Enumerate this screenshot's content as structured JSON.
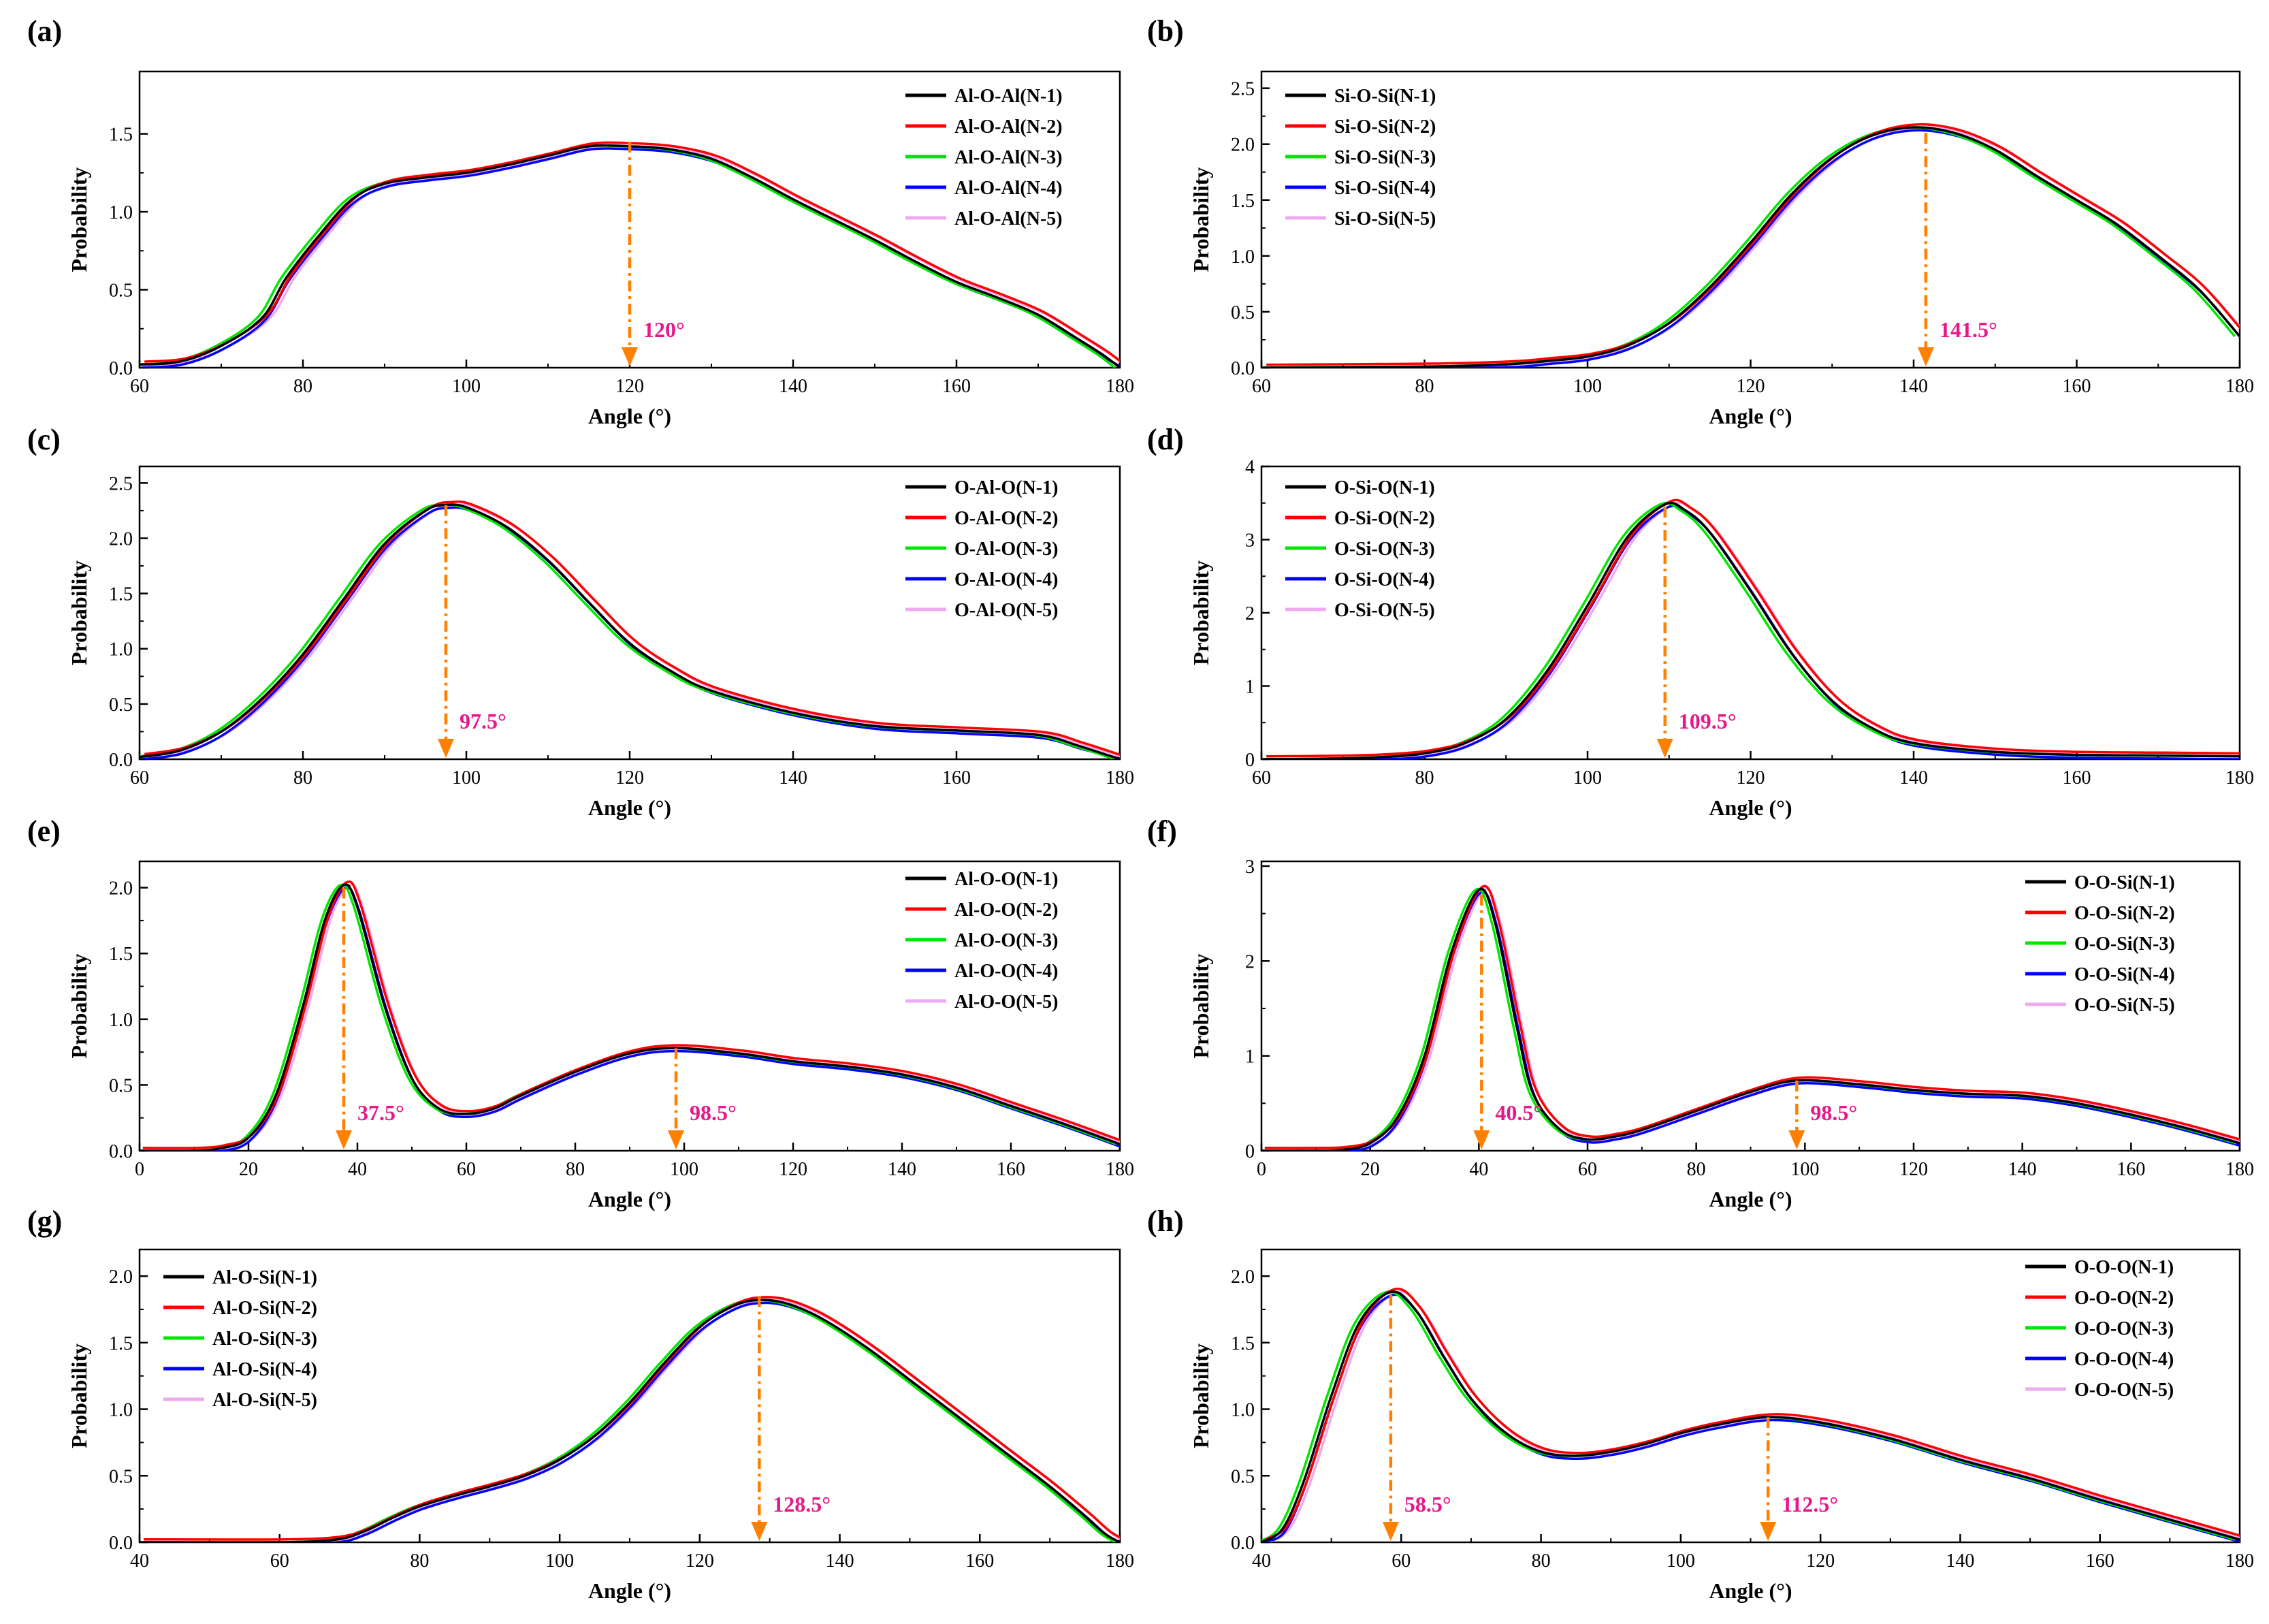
{
  "figure": {
    "xlabel": "Angle (°)",
    "ylabel": "Probability"
  },
  "colors": {
    "N-1": "#000000",
    "N-2": "#ff0000",
    "N-3": "#00e600",
    "N-4": "#0000ff",
    "N-5": "#eeaaee",
    "arrow": "#ff8000",
    "annotation": "#e8178a"
  },
  "chart_data": [
    {
      "panel": "(a)",
      "type": "line",
      "xlabel": "Angle (°)",
      "ylabel": "Probability",
      "xlim": [
        60,
        180
      ],
      "ylim": [
        0,
        1.9
      ],
      "xticks": [
        60,
        80,
        100,
        120,
        140,
        160,
        180
      ],
      "yticks": [
        0.0,
        0.5,
        1.0,
        1.5
      ],
      "ytick_labels": [
        "0.0",
        "0.5",
        "1.0",
        "1.5"
      ],
      "legend": "top-right",
      "series": [
        {
          "name": "Al-O-Al(N-1)"
        },
        {
          "name": "Al-O-Al(N-2)"
        },
        {
          "name": "Al-O-Al(N-3)"
        },
        {
          "name": "Al-O-Al(N-4)"
        },
        {
          "name": "Al-O-Al(N-5)"
        }
      ],
      "x": [
        60,
        65,
        70,
        75,
        78,
        82,
        86,
        90,
        95,
        100,
        105,
        110,
        115,
        120,
        125,
        130,
        135,
        140,
        145,
        150,
        155,
        160,
        165,
        170,
        175,
        178,
        180
      ],
      "y": [
        0.02,
        0.04,
        0.14,
        0.32,
        0.58,
        0.85,
        1.08,
        1.18,
        1.22,
        1.25,
        1.3,
        1.36,
        1.42,
        1.42,
        1.4,
        1.34,
        1.22,
        1.08,
        0.95,
        0.82,
        0.68,
        0.55,
        0.45,
        0.34,
        0.18,
        0.08,
        0.0
      ],
      "annotations": [
        {
          "label": "120°",
          "x": 120,
          "y_top": 1.45
        }
      ]
    },
    {
      "panel": "(b)",
      "type": "line",
      "xlabel": "Angle (°)",
      "ylabel": "Probability",
      "xlim": [
        60,
        180
      ],
      "ylim": [
        0,
        2.65
      ],
      "xticks": [
        60,
        80,
        100,
        120,
        140,
        160,
        180
      ],
      "yticks": [
        0.0,
        0.5,
        1.0,
        1.5,
        2.0,
        2.5
      ],
      "ytick_labels": [
        "0.0",
        "0.5",
        "1.0",
        "1.5",
        "2.0",
        "2.5"
      ],
      "legend": "top-left",
      "series": [
        {
          "name": "Si-O-Si(N-1)"
        },
        {
          "name": "Si-O-Si(N-2)"
        },
        {
          "name": "Si-O-Si(N-3)"
        },
        {
          "name": "Si-O-Si(N-4)"
        },
        {
          "name": "Si-O-Si(N-5)"
        }
      ],
      "x": [
        60,
        80,
        90,
        95,
        100,
        105,
        110,
        115,
        120,
        125,
        130,
        135,
        140,
        145,
        150,
        155,
        160,
        165,
        170,
        175,
        180
      ],
      "y": [
        0.0,
        0.01,
        0.03,
        0.06,
        0.1,
        0.2,
        0.4,
        0.72,
        1.12,
        1.55,
        1.88,
        2.08,
        2.15,
        2.1,
        1.95,
        1.72,
        1.5,
        1.28,
        1.0,
        0.7,
        0.28
      ],
      "annotations": [
        {
          "label": "141.5°",
          "x": 141.5,
          "y_top": 2.1
        }
      ]
    },
    {
      "panel": "(c)",
      "type": "line",
      "xlabel": "Angle (°)",
      "ylabel": "Probability",
      "xlim": [
        60,
        180
      ],
      "ylim": [
        0,
        2.65
      ],
      "xticks": [
        60,
        80,
        100,
        120,
        140,
        160,
        180
      ],
      "yticks": [
        0.0,
        0.5,
        1.0,
        1.5,
        2.0,
        2.5
      ],
      "ytick_labels": [
        "0.0",
        "0.5",
        "1.0",
        "1.5",
        "2.0",
        "2.5"
      ],
      "legend": "top-right",
      "series": [
        {
          "name": "O-Al-O(N-1)"
        },
        {
          "name": "O-Al-O(N-2)"
        },
        {
          "name": "O-Al-O(N-3)"
        },
        {
          "name": "O-Al-O(N-4)"
        },
        {
          "name": "O-Al-O(N-5)"
        }
      ],
      "x": [
        60,
        65,
        70,
        75,
        80,
        85,
        90,
        95,
        97.5,
        100,
        105,
        110,
        115,
        120,
        125,
        130,
        140,
        150,
        160,
        170,
        175,
        180
      ],
      "y": [
        0.02,
        0.08,
        0.25,
        0.55,
        0.95,
        1.45,
        1.95,
        2.25,
        2.3,
        2.28,
        2.1,
        1.8,
        1.42,
        1.05,
        0.8,
        0.62,
        0.42,
        0.3,
        0.26,
        0.22,
        0.12,
        0.0
      ],
      "annotations": [
        {
          "label": "97.5°",
          "x": 97.5,
          "y_top": 2.3
        }
      ]
    },
    {
      "panel": "(d)",
      "type": "line",
      "xlabel": "Angle (°)",
      "ylabel": "Probability",
      "xlim": [
        60,
        180
      ],
      "ylim": [
        0,
        4
      ],
      "xticks": [
        60,
        80,
        100,
        120,
        140,
        160,
        180
      ],
      "yticks": [
        0,
        1,
        2,
        3,
        4
      ],
      "ytick_labels": [
        "0",
        "1",
        "2",
        "3",
        "4"
      ],
      "legend": "top-left",
      "series": [
        {
          "name": "O-Si-O(N-1)"
        },
        {
          "name": "O-Si-O(N-2)"
        },
        {
          "name": "O-Si-O(N-3)"
        },
        {
          "name": "O-Si-O(N-4)"
        },
        {
          "name": "O-Si-O(N-5)"
        }
      ],
      "x": [
        60,
        70,
        75,
        80,
        85,
        90,
        95,
        100,
        105,
        109.5,
        112,
        115,
        120,
        125,
        130,
        135,
        140,
        150,
        160,
        170,
        180
      ],
      "y": [
        0.0,
        0.01,
        0.03,
        0.08,
        0.22,
        0.55,
        1.2,
        2.1,
        3.05,
        3.48,
        3.4,
        3.1,
        2.3,
        1.45,
        0.8,
        0.42,
        0.22,
        0.1,
        0.06,
        0.05,
        0.04
      ],
      "annotations": [
        {
          "label": "109.5°",
          "x": 109.5,
          "y_top": 3.45
        }
      ]
    },
    {
      "panel": "(e)",
      "type": "line",
      "xlabel": "Angle (°)",
      "ylabel": "Probability",
      "xlim": [
        0,
        180
      ],
      "ylim": [
        0,
        2.2
      ],
      "xticks": [
        0,
        20,
        40,
        60,
        80,
        100,
        120,
        140,
        160,
        180
      ],
      "yticks": [
        0.0,
        0.5,
        1.0,
        1.5,
        2.0
      ],
      "ytick_labels": [
        "0.0",
        "0.5",
        "1.0",
        "1.5",
        "2.0"
      ],
      "legend": "top-right",
      "series": [
        {
          "name": "Al-O-O(N-1)"
        },
        {
          "name": "Al-O-O(N-2)"
        },
        {
          "name": "Al-O-O(N-3)"
        },
        {
          "name": "Al-O-O(N-4)"
        },
        {
          "name": "Al-O-O(N-5)"
        }
      ],
      "x": [
        0,
        10,
        15,
        20,
        25,
        30,
        34,
        37.5,
        40,
        45,
        50,
        55,
        60,
        65,
        70,
        80,
        90,
        98.5,
        110,
        120,
        130,
        140,
        150,
        160,
        170,
        180
      ],
      "y": [
        0.0,
        0.0,
        0.02,
        0.1,
        0.42,
        1.1,
        1.75,
        2.02,
        1.85,
        1.1,
        0.55,
        0.32,
        0.28,
        0.32,
        0.42,
        0.6,
        0.74,
        0.78,
        0.74,
        0.68,
        0.64,
        0.58,
        0.48,
        0.34,
        0.2,
        0.05
      ],
      "annotations": [
        {
          "label": "37.5°",
          "x": 37.5,
          "y_top": 2.0
        },
        {
          "label": "98.5°",
          "x": 98.5,
          "y_top": 0.78
        }
      ]
    },
    {
      "panel": "(f)",
      "type": "line",
      "xlabel": "Angle (°)",
      "ylabel": "Probability",
      "xlim": [
        0,
        180
      ],
      "ylim": [
        0,
        3.05
      ],
      "xticks": [
        0,
        20,
        40,
        60,
        80,
        100,
        120,
        140,
        160,
        180
      ],
      "yticks": [
        0,
        1,
        2,
        3
      ],
      "ytick_labels": [
        "0",
        "1",
        "2",
        "3"
      ],
      "legend": "middle-right",
      "series": [
        {
          "name": "O-O-Si(N-1)"
        },
        {
          "name": "O-O-Si(N-2)"
        },
        {
          "name": "O-O-Si(N-3)"
        },
        {
          "name": "O-O-Si(N-4)"
        },
        {
          "name": "O-O-Si(N-5)"
        }
      ],
      "x": [
        0,
        10,
        15,
        20,
        25,
        30,
        35,
        40,
        43,
        47,
        50,
        55,
        60,
        65,
        70,
        80,
        90,
        98.5,
        110,
        120,
        130,
        140,
        150,
        160,
        170,
        180
      ],
      "y": [
        0.0,
        0.0,
        0.01,
        0.08,
        0.35,
        1.0,
        2.1,
        2.75,
        2.4,
        1.3,
        0.6,
        0.22,
        0.12,
        0.15,
        0.22,
        0.42,
        0.62,
        0.74,
        0.7,
        0.64,
        0.6,
        0.58,
        0.5,
        0.38,
        0.24,
        0.08
      ],
      "annotations": [
        {
          "label": "40.5°",
          "x": 40.5,
          "y_top": 2.7
        },
        {
          "label": "98.5°",
          "x": 98.5,
          "y_top": 0.74
        }
      ]
    },
    {
      "panel": "(g)",
      "type": "line",
      "xlabel": "Angle (°)",
      "ylabel": "Probability",
      "xlim": [
        40,
        180
      ],
      "ylim": [
        0,
        2.2
      ],
      "xticks": [
        40,
        60,
        80,
        100,
        120,
        140,
        160,
        180
      ],
      "yticks": [
        0.0,
        0.5,
        1.0,
        1.5,
        2.0
      ],
      "ytick_labels": [
        "0.0",
        "0.5",
        "1.0",
        "1.5",
        "2.0"
      ],
      "legend": "top-left",
      "series": [
        {
          "name": "Al-O-Si(N-1)"
        },
        {
          "name": "Al-O-Si(N-2)"
        },
        {
          "name": "Al-O-Si(N-3)"
        },
        {
          "name": "Al-O-Si(N-4)"
        },
        {
          "name": "Al-O-Si(N-5)"
        }
      ],
      "x": [
        40,
        60,
        68,
        72,
        76,
        80,
        85,
        90,
        95,
        100,
        105,
        110,
        115,
        120,
        125,
        128.5,
        132,
        136,
        140,
        145,
        150,
        155,
        160,
        165,
        170,
        175,
        178,
        180
      ],
      "y": [
        0.0,
        0.0,
        0.02,
        0.08,
        0.18,
        0.27,
        0.35,
        0.42,
        0.5,
        0.62,
        0.8,
        1.05,
        1.35,
        1.62,
        1.78,
        1.82,
        1.8,
        1.72,
        1.6,
        1.42,
        1.22,
        1.02,
        0.82,
        0.62,
        0.42,
        0.2,
        0.06,
        0.0
      ],
      "annotations": [
        {
          "label": "128.5°",
          "x": 128.5,
          "y_top": 1.85
        }
      ]
    },
    {
      "panel": "(h)",
      "type": "line",
      "xlabel": "Angle (°)",
      "ylabel": "Probability",
      "xlim": [
        40,
        180
      ],
      "ylim": [
        0,
        2.2
      ],
      "xticks": [
        40,
        60,
        80,
        100,
        120,
        140,
        160,
        180
      ],
      "yticks": [
        0.0,
        0.5,
        1.0,
        1.5,
        2.0
      ],
      "ytick_labels": [
        "0.0",
        "0.5",
        "1.0",
        "1.5",
        "2.0"
      ],
      "legend": "top-right",
      "series": [
        {
          "name": "O-O-O(N-1)"
        },
        {
          "name": "O-O-O(N-2)"
        },
        {
          "name": "O-O-O(N-3)"
        },
        {
          "name": "O-O-O(N-4)"
        },
        {
          "name": "O-O-O(N-5)"
        }
      ],
      "x": [
        40,
        43,
        46,
        50,
        54,
        58.5,
        62,
        66,
        70,
        75,
        80,
        85,
        90,
        95,
        100,
        105,
        112.5,
        120,
        130,
        140,
        150,
        160,
        170,
        180
      ],
      "y": [
        0.0,
        0.1,
        0.45,
        1.1,
        1.65,
        1.88,
        1.75,
        1.4,
        1.08,
        0.82,
        0.68,
        0.65,
        0.68,
        0.74,
        0.82,
        0.88,
        0.94,
        0.9,
        0.78,
        0.62,
        0.48,
        0.32,
        0.17,
        0.02
      ],
      "annotations": [
        {
          "label": "58.5°",
          "x": 58.5,
          "y_top": 1.86
        },
        {
          "label": "112.5°",
          "x": 112.5,
          "y_top": 0.94
        }
      ]
    }
  ]
}
